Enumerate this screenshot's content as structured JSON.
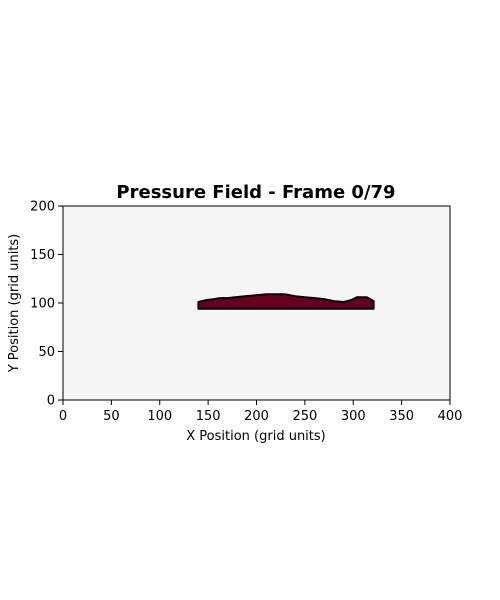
{
  "chart_data": {
    "type": "heatmap",
    "title": "Pressure Field - Frame 0/79",
    "xlabel": "X Position (grid units)",
    "ylabel": "Y Position (grid units)",
    "xlim": [
      0,
      400
    ],
    "ylim": [
      0,
      200
    ],
    "xticks": [
      0,
      50,
      100,
      150,
      200,
      250,
      300,
      350,
      400
    ],
    "yticks": [
      0,
      50,
      100,
      150,
      200
    ],
    "xtick_labels": [
      "0",
      "50",
      "100",
      "150",
      "200",
      "250",
      "300",
      "350",
      "400"
    ],
    "ytick_labels": [
      "0",
      "50",
      "100",
      "150",
      "200"
    ],
    "grid": false,
    "field_background_color": "#f5f5f5",
    "object": {
      "fill_color": "#67001f",
      "edge_color": "#000000",
      "outline": [
        [
          140,
          94
        ],
        [
          140,
          101
        ],
        [
          148,
          103
        ],
        [
          156,
          104
        ],
        [
          162,
          105
        ],
        [
          170,
          105
        ],
        [
          178,
          106
        ],
        [
          188,
          107
        ],
        [
          200,
          108
        ],
        [
          210,
          109
        ],
        [
          220,
          109
        ],
        [
          230,
          109
        ],
        [
          240,
          107
        ],
        [
          250,
          106
        ],
        [
          260,
          105
        ],
        [
          270,
          104
        ],
        [
          280,
          102
        ],
        [
          290,
          101
        ],
        [
          298,
          103
        ],
        [
          304,
          106
        ],
        [
          314,
          106
        ],
        [
          321,
          102
        ],
        [
          321,
          94
        ]
      ]
    }
  }
}
